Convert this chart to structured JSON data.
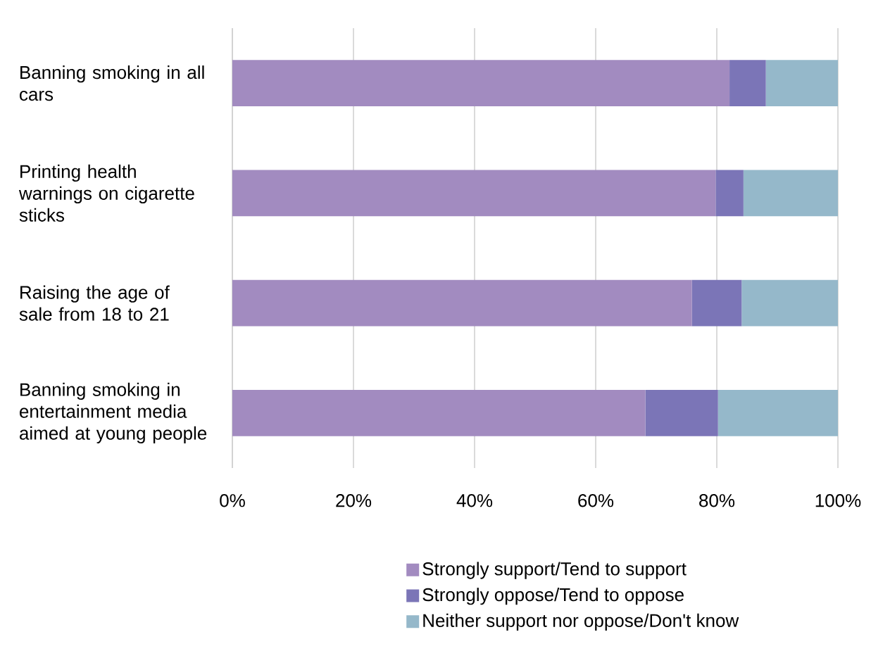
{
  "chart_data": {
    "type": "bar",
    "orientation": "horizontal",
    "stacked": true,
    "categories": [
      "Banning smoking in all cars",
      "Printing health warnings on cigarette sticks",
      "Raising the age of sale from 18 to 21",
      "Banning smoking in entertainment media aimed at young people"
    ],
    "series": [
      {
        "name": "Strongly support/Tend to support",
        "color": "#a28bc0",
        "values": [
          82.1,
          79.8,
          75.9,
          68.2
        ]
      },
      {
        "name": "Strongly oppose/Tend to oppose",
        "color": "#7b75b7",
        "values": [
          6.0,
          4.6,
          8.2,
          12.0
        ]
      },
      {
        "name": "Neither support nor oppose/Don't know",
        "color": "#95b8ca",
        "values": [
          11.9,
          15.6,
          15.9,
          19.8
        ]
      }
    ],
    "xlim": [
      0,
      100
    ],
    "xticks": [
      {
        "value": 0,
        "label": "0%"
      },
      {
        "value": 20,
        "label": "20%"
      },
      {
        "value": 40,
        "label": "40%"
      },
      {
        "value": 60,
        "label": "60%"
      },
      {
        "value": 80,
        "label": "80%"
      },
      {
        "value": 100,
        "label": "100%"
      }
    ],
    "grid": "x",
    "legend": "bottom"
  }
}
